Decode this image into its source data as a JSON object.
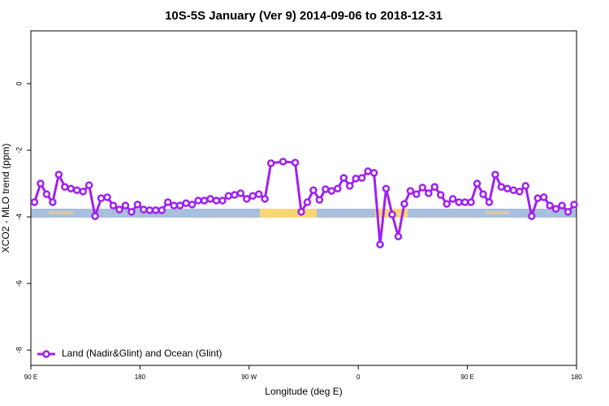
{
  "chart_data": {
    "type": "line",
    "title": "10S-5S January (Ver 9)   2014-09-06 to 2018-12-31",
    "x_label": "Longitude (deg E)",
    "y_label": "XCO2 - MLO trend (ppm)",
    "xlim": [
      90,
      540
    ],
    "ylim": [
      -8.46,
      1.585
    ],
    "xticks": [
      {
        "value": 90,
        "label": "90 E"
      },
      180,
      {
        "value": 270,
        "label": "90 W"
      },
      {
        "value": 360,
        "label": "0"
      },
      {
        "value": 450,
        "label": "90 E"
      },
      {
        "value": 540,
        "label": "180"
      }
    ],
    "yticks": [
      0,
      -2,
      -4,
      -6,
      -8
    ],
    "legend": "bottom-left",
    "series": [
      {
        "name": "Land (Nadir&Glint) and Ocean (Glint)",
        "color": "#a020f0",
        "x": [
          93,
          98,
          103,
          108,
          113,
          118,
          123,
          128,
          133,
          138,
          143,
          148,
          153,
          158,
          163,
          168,
          173,
          178,
          183,
          188,
          193,
          198,
          203,
          208,
          213,
          218,
          223,
          228,
          233,
          238,
          243,
          248,
          253,
          258,
          263,
          268,
          273,
          278,
          283,
          288,
          298,
          308,
          313,
          318,
          323,
          328,
          333,
          338,
          343,
          348,
          353,
          358,
          363,
          368,
          373,
          378,
          383,
          388,
          393,
          398,
          403,
          408,
          413,
          418,
          423,
          428,
          433,
          438,
          443,
          448,
          453,
          458,
          463,
          468,
          473,
          478,
          483,
          488,
          493,
          498,
          503,
          508,
          513,
          518,
          523,
          528,
          533,
          538
        ],
        "values": [
          -3.56,
          -3.0,
          -3.32,
          -3.56,
          -2.73,
          -3.1,
          -3.15,
          -3.2,
          -3.24,
          -3.05,
          -3.98,
          -3.44,
          -3.41,
          -3.66,
          -3.78,
          -3.66,
          -3.85,
          -3.63,
          -3.78,
          -3.8,
          -3.8,
          -3.8,
          -3.56,
          -3.66,
          -3.66,
          -3.59,
          -3.63,
          -3.51,
          -3.51,
          -3.46,
          -3.51,
          -3.51,
          -3.37,
          -3.34,
          -3.29,
          -3.46,
          -3.37,
          -3.32,
          -3.46,
          -2.39,
          -2.34,
          -2.37,
          -3.85,
          -3.56,
          -3.2,
          -3.49,
          -3.17,
          -3.22,
          -3.15,
          -2.83,
          -3.07,
          -2.85,
          -2.83,
          -2.63,
          -2.68,
          -4.83,
          -3.15,
          -3.93,
          -4.59,
          -3.61,
          -3.22,
          -3.32,
          -3.12,
          -3.29,
          -3.1,
          -3.34,
          -3.61,
          -3.46,
          -3.56,
          -3.56,
          -3.56,
          -3.0,
          -3.32,
          -3.56,
          -2.73,
          -3.1,
          -3.15,
          -3.2,
          -3.24,
          -3.07,
          -3.98,
          -3.44,
          -3.41,
          -3.66,
          -3.76,
          -3.66,
          -3.85,
          -3.63
        ]
      }
    ]
  }
}
